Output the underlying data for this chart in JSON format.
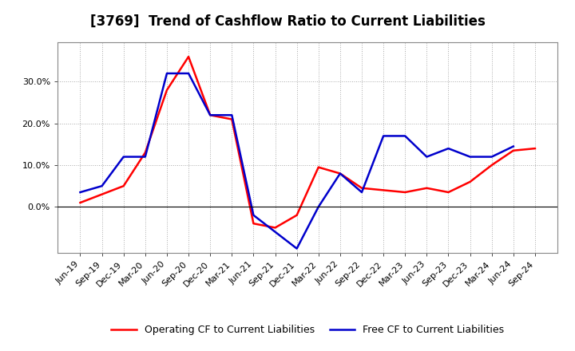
{
  "title": "[3769]  Trend of Cashflow Ratio to Current Liabilities",
  "x_labels": [
    "Jun-19",
    "Sep-19",
    "Dec-19",
    "Mar-20",
    "Jun-20",
    "Sep-20",
    "Dec-20",
    "Mar-21",
    "Jun-21",
    "Sep-21",
    "Dec-21",
    "Mar-22",
    "Jun-22",
    "Sep-22",
    "Dec-22",
    "Mar-23",
    "Jun-23",
    "Sep-23",
    "Dec-23",
    "Mar-24",
    "Jun-24",
    "Sep-24"
  ],
  "operating_cf": [
    0.01,
    0.03,
    0.05,
    0.13,
    0.28,
    0.36,
    0.22,
    0.21,
    -0.04,
    -0.05,
    -0.02,
    0.095,
    0.08,
    0.045,
    0.04,
    0.035,
    0.045,
    0.035,
    0.06,
    0.1,
    0.135,
    0.14
  ],
  "free_cf": [
    0.035,
    0.05,
    0.12,
    0.12,
    0.32,
    0.32,
    0.22,
    0.22,
    -0.02,
    -0.06,
    -0.1,
    0.0,
    0.08,
    0.035,
    0.17,
    0.17,
    0.12,
    0.14,
    0.12,
    0.12,
    0.145,
    null
  ],
  "operating_color": "#ff0000",
  "free_color": "#0000cc",
  "ylim_min": -0.11,
  "ylim_max": 0.395,
  "yticks": [
    0.0,
    0.1,
    0.2,
    0.3
  ],
  "background_color": "#ffffff",
  "plot_bg_color": "#ffffff",
  "grid_color": "#aaaaaa",
  "legend_op": "Operating CF to Current Liabilities",
  "legend_free": "Free CF to Current Liabilities",
  "title_fontsize": 12,
  "tick_fontsize": 8,
  "legend_fontsize": 9,
  "line_width": 1.8
}
